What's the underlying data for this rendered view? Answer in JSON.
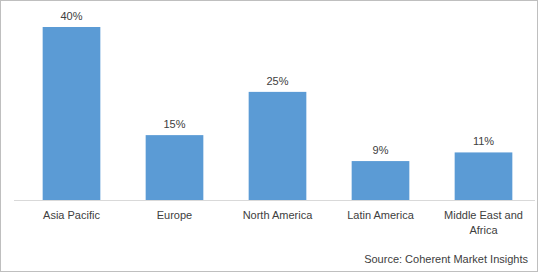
{
  "chart_data": {
    "type": "bar",
    "categories": [
      "Asia Pacific",
      "Europe",
      "North America",
      "Latin America",
      "Middle East and Africa"
    ],
    "values": [
      40,
      15,
      25,
      9,
      11
    ],
    "value_labels": [
      "40%",
      "15%",
      "25%",
      "9%",
      "11%"
    ],
    "color": "#5b9bd5",
    "ylim": [
      0,
      40
    ],
    "data_labels": true,
    "tick_labels": "x",
    "grid": false,
    "source": "Source: Coherent Market Insights"
  }
}
